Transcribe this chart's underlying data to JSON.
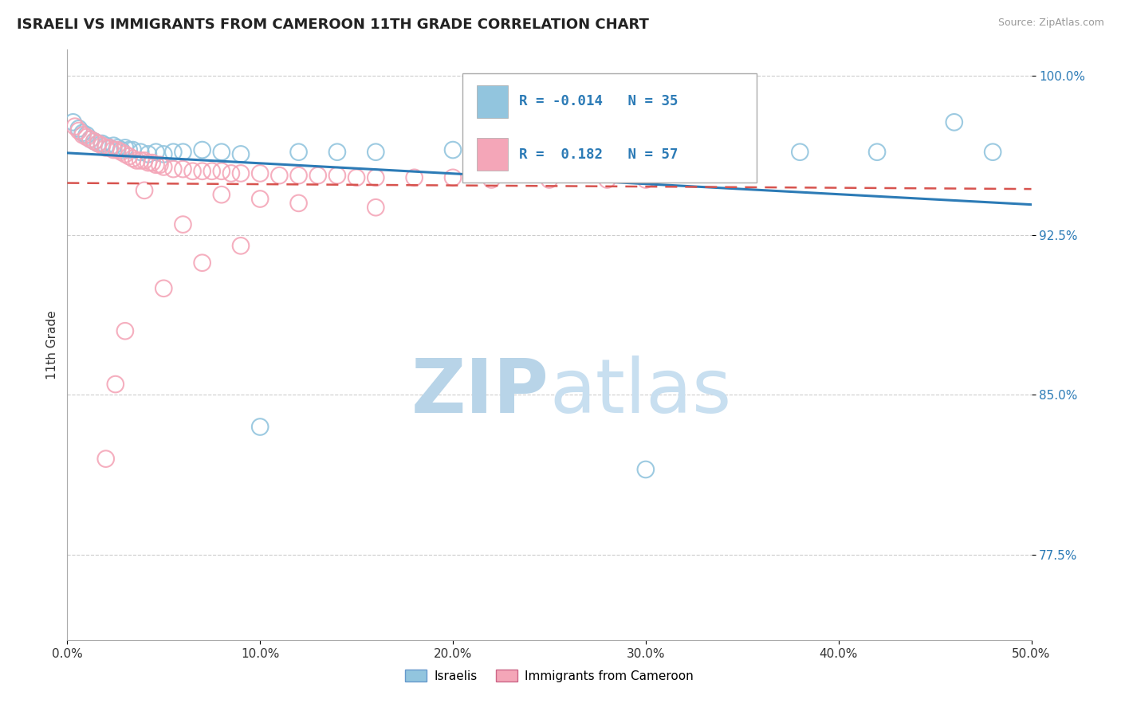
{
  "title": "ISRAELI VS IMMIGRANTS FROM CAMEROON 11TH GRADE CORRELATION CHART",
  "source_text": "Source: ZipAtlas.com",
  "ylabel": "11th Grade",
  "xlim": [
    0.0,
    0.5
  ],
  "ylim": [
    0.735,
    1.012
  ],
  "r_israeli": -0.014,
  "n_israeli": 35,
  "r_cameroon": 0.182,
  "n_cameroon": 57,
  "legend_labels": [
    "Israelis",
    "Immigrants from Cameroon"
  ],
  "color_israeli": "#92c5de",
  "color_cameroon": "#f4a6b8",
  "trendline_israeli_color": "#2c7bb6",
  "trendline_cameroon_color": "#d7534e",
  "watermark_zip": "ZIP",
  "watermark_atlas": "atlas",
  "watermark_color": "#c8dff0",
  "background_color": "#ffffff",
  "grid_color": "#cccccc",
  "ytick_vals": [
    0.775,
    0.85,
    0.925,
    1.0
  ],
  "ytick_labels": [
    "77.5%",
    "85.0%",
    "92.5%",
    "100.0%"
  ],
  "xtick_vals": [
    0.0,
    0.1,
    0.2,
    0.3,
    0.4,
    0.5
  ],
  "xtick_labels": [
    "0.0%",
    "10.0%",
    "20.0%",
    "30.0%",
    "40.0%",
    "50.0%"
  ],
  "israeli_x": [
    0.003,
    0.006,
    0.008,
    0.01,
    0.012,
    0.014,
    0.016,
    0.018,
    0.02,
    0.022,
    0.024,
    0.026,
    0.028,
    0.03,
    0.032,
    0.034,
    0.038,
    0.042,
    0.046,
    0.05,
    0.055,
    0.06,
    0.07,
    0.08,
    0.09,
    0.1,
    0.12,
    0.14,
    0.16,
    0.2,
    0.38,
    0.42,
    0.46,
    0.48,
    0.3
  ],
  "israeli_y": [
    0.978,
    0.975,
    0.973,
    0.972,
    0.97,
    0.969,
    0.968,
    0.968,
    0.967,
    0.966,
    0.967,
    0.966,
    0.965,
    0.966,
    0.965,
    0.965,
    0.964,
    0.963,
    0.964,
    0.963,
    0.964,
    0.964,
    0.965,
    0.964,
    0.963,
    0.835,
    0.964,
    0.964,
    0.964,
    0.965,
    0.964,
    0.964,
    0.978,
    0.964,
    0.815
  ],
  "cameroon_x": [
    0.004,
    0.006,
    0.008,
    0.01,
    0.012,
    0.014,
    0.016,
    0.018,
    0.02,
    0.022,
    0.024,
    0.026,
    0.028,
    0.03,
    0.032,
    0.034,
    0.036,
    0.038,
    0.04,
    0.042,
    0.044,
    0.046,
    0.048,
    0.05,
    0.055,
    0.06,
    0.065,
    0.07,
    0.075,
    0.08,
    0.085,
    0.09,
    0.1,
    0.11,
    0.12,
    0.13,
    0.14,
    0.15,
    0.16,
    0.18,
    0.2,
    0.22,
    0.25,
    0.28,
    0.3,
    0.04,
    0.08,
    0.1,
    0.12,
    0.16,
    0.06,
    0.09,
    0.07,
    0.05,
    0.03,
    0.025,
    0.02
  ],
  "cameroon_y": [
    0.976,
    0.974,
    0.972,
    0.971,
    0.97,
    0.969,
    0.968,
    0.967,
    0.966,
    0.966,
    0.965,
    0.965,
    0.964,
    0.963,
    0.962,
    0.961,
    0.96,
    0.96,
    0.96,
    0.959,
    0.959,
    0.958,
    0.958,
    0.957,
    0.956,
    0.956,
    0.955,
    0.955,
    0.955,
    0.955,
    0.954,
    0.954,
    0.954,
    0.953,
    0.953,
    0.953,
    0.953,
    0.952,
    0.952,
    0.952,
    0.952,
    0.951,
    0.951,
    0.951,
    0.951,
    0.946,
    0.944,
    0.942,
    0.94,
    0.938,
    0.93,
    0.92,
    0.912,
    0.9,
    0.88,
    0.855,
    0.82
  ]
}
